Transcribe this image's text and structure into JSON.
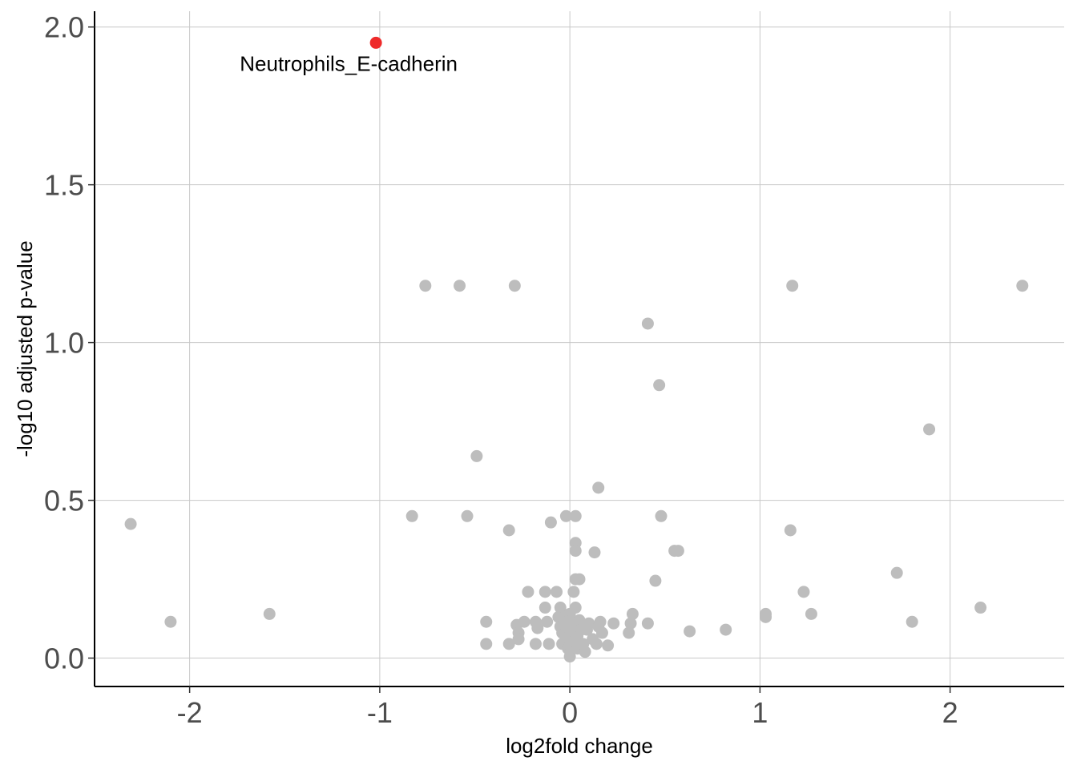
{
  "chart_data": {
    "type": "scatter",
    "title": "",
    "xlabel": "log2fold change",
    "ylabel": "-log10 adjusted p-value",
    "xlim": [
      -2.5,
      2.6
    ],
    "ylim": [
      -0.09,
      2.05
    ],
    "x_ticks": [
      -2,
      -1,
      0,
      1,
      2
    ],
    "y_ticks": [
      0.0,
      0.5,
      1.0,
      1.5,
      2.0
    ],
    "x_tick_labels": [
      "-2",
      "-1",
      "0",
      "1",
      "2"
    ],
    "y_tick_labels": [
      "0.0",
      "0.5",
      "1.0",
      "1.5",
      "2.0"
    ],
    "grid": true,
    "legend": "none",
    "colors": {
      "highlight": "#ee2a2a",
      "point": "#bdbdbd",
      "grid": "#c8c8c8",
      "axis": "#000000"
    },
    "highlight": {
      "label": "Neutrophils_E-cadherin",
      "x": -1.02,
      "y": 1.95
    },
    "points": [
      [
        -2.31,
        0.425
      ],
      [
        -2.1,
        0.115
      ],
      [
        -1.58,
        0.14
      ],
      [
        -0.76,
        1.18
      ],
      [
        -0.58,
        1.18
      ],
      [
        -0.29,
        1.18
      ],
      [
        -0.83,
        0.45
      ],
      [
        -0.54,
        0.45
      ],
      [
        -0.49,
        0.64
      ],
      [
        -0.32,
        0.405
      ],
      [
        -0.44,
        0.115
      ],
      [
        -0.44,
        0.045
      ],
      [
        -0.32,
        0.045
      ],
      [
        -0.28,
        0.105
      ],
      [
        -0.27,
        0.08
      ],
      [
        -0.27,
        0.06
      ],
      [
        -0.24,
        0.115
      ],
      [
        -0.22,
        0.21
      ],
      [
        -0.18,
        0.045
      ],
      [
        -0.18,
        0.115
      ],
      [
        -0.17,
        0.095
      ],
      [
        -0.13,
        0.21
      ],
      [
        -0.13,
        0.16
      ],
      [
        -0.12,
        0.115
      ],
      [
        -0.11,
        0.045
      ],
      [
        -0.1,
        0.43
      ],
      [
        -0.07,
        0.21
      ],
      [
        -0.06,
        0.13
      ],
      [
        -0.05,
        0.16
      ],
      [
        -0.05,
        0.1
      ],
      [
        -0.04,
        0.08
      ],
      [
        -0.04,
        0.045
      ],
      [
        -0.03,
        0.13
      ],
      [
        -0.02,
        0.45
      ],
      [
        -0.02,
        0.1
      ],
      [
        -0.01,
        0.06
      ],
      [
        -0.01,
        0.03
      ],
      [
        0.0,
        0.14
      ],
      [
        0.0,
        0.09
      ],
      [
        0.0,
        0.07
      ],
      [
        0.0,
        0.04
      ],
      [
        0.0,
        0.005
      ],
      [
        0.01,
        0.12
      ],
      [
        0.01,
        0.05
      ],
      [
        0.02,
        0.21
      ],
      [
        0.02,
        0.1
      ],
      [
        0.03,
        0.45
      ],
      [
        0.03,
        0.365
      ],
      [
        0.03,
        0.34
      ],
      [
        0.03,
        0.25
      ],
      [
        0.03,
        0.16
      ],
      [
        0.04,
        0.07
      ],
      [
        0.04,
        0.03
      ],
      [
        0.05,
        0.25
      ],
      [
        0.05,
        0.12
      ],
      [
        0.06,
        0.09
      ],
      [
        0.07,
        0.045
      ],
      [
        0.08,
        0.02
      ],
      [
        0.09,
        0.09
      ],
      [
        0.1,
        0.11
      ],
      [
        0.12,
        0.06
      ],
      [
        0.13,
        0.335
      ],
      [
        0.14,
        0.045
      ],
      [
        0.15,
        0.54
      ],
      [
        0.15,
        0.1
      ],
      [
        0.16,
        0.115
      ],
      [
        0.17,
        0.08
      ],
      [
        0.2,
        0.04
      ],
      [
        0.23,
        0.11
      ],
      [
        0.31,
        0.08
      ],
      [
        0.32,
        0.11
      ],
      [
        0.33,
        0.14
      ],
      [
        0.41,
        1.06
      ],
      [
        0.41,
        0.11
      ],
      [
        0.45,
        0.245
      ],
      [
        0.47,
        0.865
      ],
      [
        0.48,
        0.45
      ],
      [
        0.55,
        0.34
      ],
      [
        0.57,
        0.34
      ],
      [
        0.63,
        0.085
      ],
      [
        0.82,
        0.09
      ],
      [
        1.03,
        0.13
      ],
      [
        1.03,
        0.14
      ],
      [
        1.16,
        0.405
      ],
      [
        1.17,
        1.18
      ],
      [
        1.23,
        0.21
      ],
      [
        1.27,
        0.14
      ],
      [
        1.72,
        0.27
      ],
      [
        1.8,
        0.115
      ],
      [
        1.89,
        0.725
      ],
      [
        2.16,
        0.16
      ],
      [
        2.38,
        1.18
      ]
    ]
  }
}
